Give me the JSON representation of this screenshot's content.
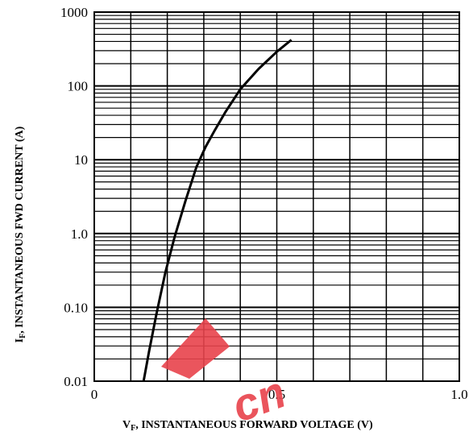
{
  "chart_data": {
    "type": "line",
    "xlabel": {
      "main": "V",
      "sub": "F",
      "rest": ", INSTANTANEOUS FORWARD VOLTAGE (V)"
    },
    "ylabel": {
      "main": "I",
      "sub": "F",
      "rest": ", INSTANTANEOUS FWD CURRENT (A)"
    },
    "xlim": [
      0,
      1.0
    ],
    "ylim": [
      0.01,
      1000
    ],
    "y_scale": "log",
    "x_ticks": [
      {
        "value": 0,
        "label": "0"
      },
      {
        "value": 0.5,
        "label": "0.5"
      },
      {
        "value": 1.0,
        "label": "1.0"
      }
    ],
    "y_ticks": [
      {
        "value": 0.01,
        "label": "0.01"
      },
      {
        "value": 0.1,
        "label": "0.10"
      },
      {
        "value": 1,
        "label": "1.0"
      },
      {
        "value": 10,
        "label": "10"
      },
      {
        "value": 100,
        "label": "100"
      },
      {
        "value": 1000,
        "label": "1000"
      }
    ],
    "x_minor_gridlines": 10,
    "grid": true,
    "series": [
      {
        "x": [
          0.135,
          0.15,
          0.17,
          0.195,
          0.22,
          0.25,
          0.28,
          0.305,
          0.33,
          0.36,
          0.4,
          0.45,
          0.5,
          0.54
        ],
        "y": [
          0.01,
          0.025,
          0.08,
          0.3,
          0.9,
          2.8,
          8,
          15,
          25,
          45,
          90,
          170,
          290,
          420
        ],
        "color": "#000000"
      }
    ]
  },
  "watermark": {
    "text": "cn"
  }
}
